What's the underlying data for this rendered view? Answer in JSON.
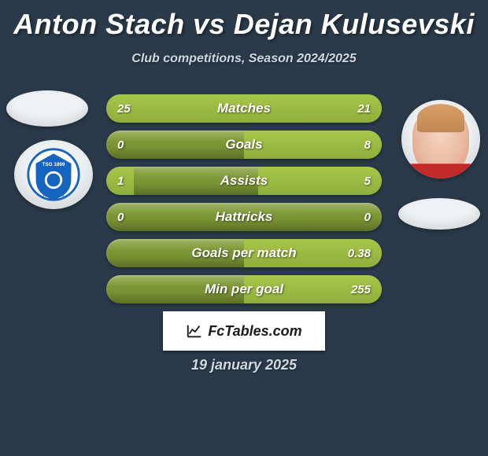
{
  "title": "Anton Stach vs Dejan Kulusevski",
  "subtitle": "Club competitions, Season 2024/2025",
  "date": "19 january 2025",
  "logo_text": "FcTables.com",
  "colors": {
    "background": "#2a3a4a",
    "bar_base_top": "#86a13c",
    "bar_base_bottom": "#70882e",
    "bar_fill_top": "#a8c64a",
    "bar_fill_bottom": "#8fae3c",
    "title_color": "#ffffff",
    "subtitle_color": "#d0d8e0",
    "logo_bg": "#ffffff",
    "logo_text": "#1a1a1a",
    "club1_badge_primary": "#1565c0",
    "club1_badge_secondary": "#ffffff",
    "p2_hair": "#d8a068",
    "p2_skin": "#f0c8b0",
    "p2_shirt": "#c52a2a"
  },
  "typography": {
    "title_fontsize": 36,
    "subtitle_fontsize": 16,
    "stat_label_fontsize": 17,
    "stat_value_fontsize": 15,
    "date_fontsize": 18,
    "font_family": "Arial, Helvetica, sans-serif",
    "style": "italic",
    "weight": "800"
  },
  "stats": [
    {
      "label": "Matches",
      "p1": "25",
      "p2": "21",
      "p1_ratio": 0.54,
      "p2_ratio": 0.46
    },
    {
      "label": "Goals",
      "p1": "0",
      "p2": "8",
      "p1_ratio": 0.0,
      "p2_ratio": 0.5
    },
    {
      "label": "Assists",
      "p1": "1",
      "p2": "5",
      "p1_ratio": 0.1,
      "p2_ratio": 0.45
    },
    {
      "label": "Hattricks",
      "p1": "0",
      "p2": "0",
      "p1_ratio": 0.0,
      "p2_ratio": 0.0
    },
    {
      "label": "Goals per match",
      "p1": "",
      "p2": "0.38",
      "p1_ratio": 0.0,
      "p2_ratio": 0.5
    },
    {
      "label": "Min per goal",
      "p1": "",
      "p2": "255",
      "p1_ratio": 0.0,
      "p2_ratio": 0.5
    }
  ]
}
